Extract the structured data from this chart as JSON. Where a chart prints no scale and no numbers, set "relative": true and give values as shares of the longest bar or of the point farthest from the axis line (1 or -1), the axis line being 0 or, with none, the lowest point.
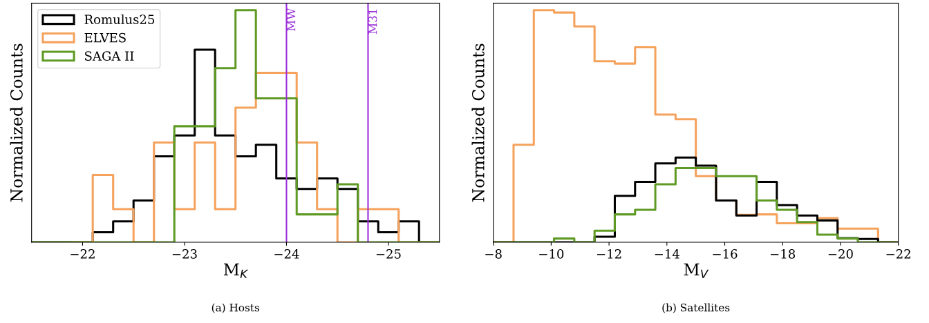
{
  "chart_data": [
    {
      "type": "step",
      "relative": true,
      "xlabel": "M$_{K}$",
      "ylabel": "Normalized Counts",
      "xlim": [
        -21.5,
        -25.5
      ],
      "xticks": [
        {
          "value": -22,
          "label": "−22"
        },
        {
          "value": -23,
          "label": "−23"
        },
        {
          "value": -24,
          "label": "−24"
        },
        {
          "value": -25,
          "label": "−25"
        }
      ],
      "tick_labels": "x",
      "legend": "top left",
      "x": [
        -21.5,
        -21.7,
        -21.9,
        -22.1,
        -22.3,
        -22.5,
        -22.7,
        -22.9,
        -23.1,
        -23.3,
        -23.5,
        -23.7,
        -23.9,
        -24.1,
        -24.3,
        -24.5,
        -24.7,
        -24.9,
        -25.1,
        -25.3,
        -25.5
      ],
      "series": [
        {
          "name": "Romulus25",
          "color": "#000000",
          "values": [
            0,
            0,
            0,
            0.043,
            0.09,
            0.18,
            0.37,
            0.46,
            0.83,
            0.46,
            0.37,
            0.42,
            0.275,
            0.23,
            0.275,
            0.23,
            0.09,
            0.043,
            0.09,
            0,
            0
          ]
        },
        {
          "name": "ELVES",
          "color": "#f5a25d",
          "values": [
            null,
            null,
            0,
            0.29,
            0.143,
            0,
            0.43,
            0.143,
            0.43,
            0.143,
            0.58,
            0.73,
            0.73,
            0.43,
            0.143,
            0,
            0.143,
            0.143,
            0,
            0,
            0
          ]
        },
        {
          "name": "SAGA II",
          "color": "#5f9a25",
          "values": [
            0,
            0,
            0,
            0,
            0,
            0,
            0,
            0.5,
            0.5,
            0.75,
            1.0,
            0.62,
            0.62,
            0.12,
            0.12,
            0.25,
            0,
            0,
            0,
            0,
            0
          ]
        }
      ],
      "ref_lines": [
        {
          "axis": "x",
          "value": -24,
          "label": "MW",
          "color": "#9b30d9"
        },
        {
          "axis": "x",
          "value": -24.8,
          "label": "M31",
          "color": "#9b30d9"
        }
      ],
      "annotations": [
        "(a) Hosts"
      ]
    },
    {
      "type": "step",
      "relative": true,
      "xlabel": "M$_{V}$",
      "ylabel": "Normalized Counts",
      "xlim": [
        -8,
        -22
      ],
      "xticks": [
        {
          "value": -8,
          "label": "−8"
        },
        {
          "value": -10,
          "label": "−10"
        },
        {
          "value": -12,
          "label": "−12"
        },
        {
          "value": -14,
          "label": "−14"
        },
        {
          "value": -16,
          "label": "−16"
        },
        {
          "value": -18,
          "label": "−18"
        },
        {
          "value": -20,
          "label": "−20"
        },
        {
          "value": -22,
          "label": "−22"
        }
      ],
      "tick_labels": "x",
      "x": [
        -8.0,
        -8.7,
        -9.4,
        -10.1,
        -10.8,
        -11.5,
        -12.2,
        -12.9,
        -13.6,
        -14.3,
        -15.0,
        -15.7,
        -16.4,
        -17.1,
        -17.8,
        -18.5,
        -19.2,
        -19.9,
        -20.6,
        -21.3,
        -22.0
      ],
      "series": [
        {
          "color": "#f5a25d",
          "values": [
            0,
            0.42,
            1.0,
            0.99,
            0.93,
            0.78,
            0.77,
            0.84,
            0.55,
            0.53,
            0.285,
            0.18,
            0.118,
            0.12,
            0.082,
            0.082,
            0.104,
            0.059,
            0.059,
            0,
            0
          ]
        },
        {
          "color": "#000000",
          "values": [
            0,
            0,
            0,
            0,
            0,
            0.024,
            0.2,
            0.26,
            0.34,
            0.365,
            0.33,
            0.18,
            0.115,
            0.26,
            0.16,
            0.115,
            0.094,
            0.018,
            0.014,
            0,
            0
          ]
        },
        {
          "color": "#5f9a25",
          "values": [
            0,
            0,
            0,
            0.016,
            0,
            0.05,
            0.12,
            0.14,
            0.25,
            0.32,
            0.32,
            0.285,
            0.285,
            0.18,
            0.14,
            0.087,
            0.033,
            0.016,
            0,
            0,
            0
          ]
        }
      ],
      "annotations": [
        "(b) Satellites"
      ]
    }
  ]
}
